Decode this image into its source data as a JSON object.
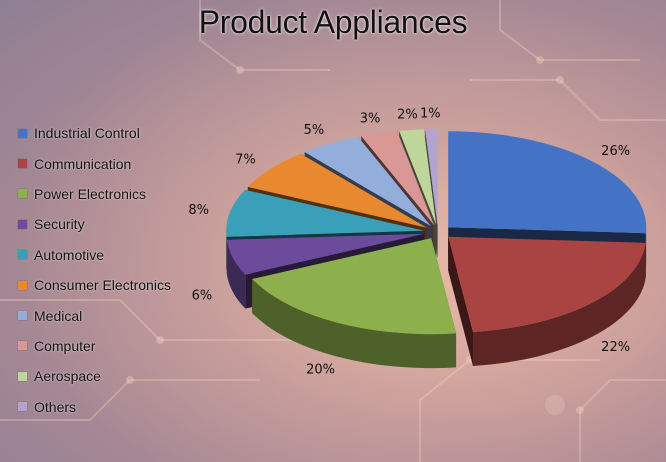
{
  "chart_data": {
    "type": "pie",
    "title": "Product Appliances",
    "categories": [
      "Industrial Control",
      "Communication",
      "Power Electronics",
      "Security",
      "Automotive",
      "Consumer Electronics",
      "Medical",
      "Computer",
      "Aerospace",
      "Others"
    ],
    "values": [
      26,
      22,
      20,
      6,
      8,
      7,
      5,
      3,
      2,
      1
    ],
    "value_labels": [
      "26%",
      "22%",
      "20%",
      "6%",
      "8%",
      "7%",
      "5%",
      "3%",
      "2%",
      "1%"
    ],
    "colors": [
      "#4472c4",
      "#a94442",
      "#8db04c",
      "#6c4b9c",
      "#3aa0b9",
      "#e8892f",
      "#94aedb",
      "#d99795",
      "#bfd69a",
      "#b3a3cf"
    ],
    "legend_position": "left",
    "style": "3d-exploded"
  }
}
